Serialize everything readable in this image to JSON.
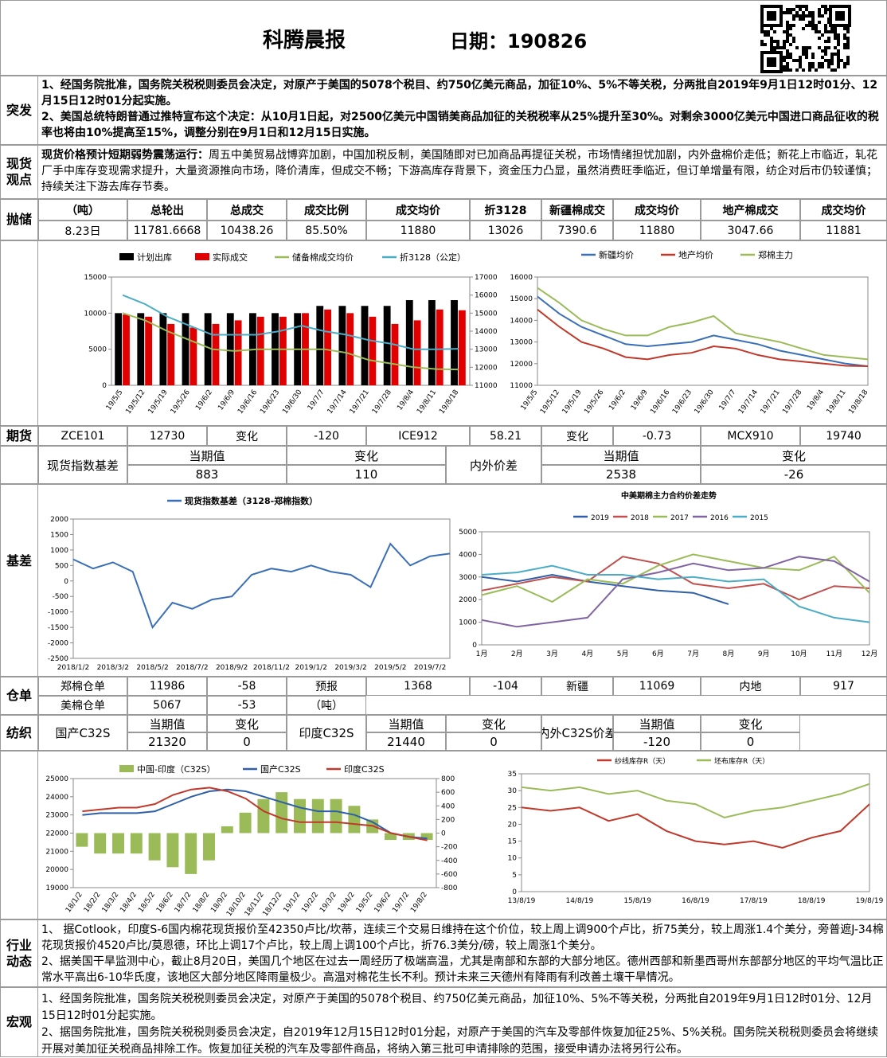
{
  "header": {
    "title": "科腾晨报",
    "date": "日期：190826"
  },
  "sections": {
    "breaking": {
      "label": "突发",
      "paragraphs": [
        "1、经国务院批准，国务院关税税则委员会决定，对原产于美国的5078个税目、约750亿美元商品，加征10%、5%不等关税，分两批自2019年9月1日12时01分、12月15日12时01分起实施。",
        "2、美国总统特朗普通过推特宣布这个决定：从10月1日起，对2500亿美元中国销美商品加征的关税税率从25%提升至30%。对剩余3000亿美元中国进口商品征收的税率也将由10%提高至15%，调整分别在9月1日和12月15日实施。"
      ]
    },
    "spot_view": {
      "label": "现货观点",
      "lead": "现货价格预计短期弱势震荡运行：",
      "text": "周五中美贸易战博弈加剧，中国加税反制，美国随即对已加商品再提征关税，市场情绪担忧加剧，内外盘棉价走低；新花上市临近，轧花厂手中库存变现需求提升，大量资源推向市场，降价清库，但成交不畅；下游高库存背景下，资金压力凸显，虽然消费旺季临近，但订单增量有限，纺企对后市仍较谨慎；持续关注下游去库存节奏。"
    },
    "reserve": {
      "label": "抛储",
      "header": [
        "（吨）",
        "总轮出",
        "总成交",
        "成交比例",
        "成交均价",
        "折3128",
        "新疆棉成交",
        "成交均价",
        "地产棉成交",
        "成交均价"
      ],
      "row": [
        "8.23日",
        "11781.6668",
        "10438.26",
        "85.50%",
        "11880",
        "13026",
        "7390.6",
        "11880",
        "3047.66",
        "11881"
      ]
    },
    "futures": {
      "label": "期货",
      "cells": [
        "ZCE101",
        "12730",
        "变化",
        "-120",
        "ICE912",
        "58.21",
        "变化",
        "-0.73",
        "MCX910",
        "19740"
      ]
    },
    "spot_basis": {
      "cells": [
        "现货指数基差",
        "当期值",
        "883",
        "变化",
        "110",
        "内外价差",
        "当期值",
        "2538",
        "变化",
        "-26"
      ]
    },
    "basis": {
      "label": "基差"
    },
    "warehouse": {
      "label": "仓单",
      "rows": [
        [
          "郑棉仓单",
          "11986",
          "-58",
          "预报",
          "1368",
          "-104",
          "新疆",
          "11069",
          "内地",
          "917"
        ],
        [
          "美棉仓单",
          "5067",
          "-53",
          "（吨）"
        ]
      ]
    },
    "textile": {
      "label": "纺织",
      "cells": [
        "国产C32S",
        "当期值",
        "21320",
        "变化",
        "0",
        "印度C32S",
        "当期值",
        "21440",
        "变化",
        "0",
        "内外C32S价差",
        "当期值",
        "-120",
        "变化",
        "0"
      ]
    },
    "industry": {
      "label": "行业动态",
      "paragraphs": [
        "1、 据Cotlook，印度S-6国内棉花现货报价至42350卢比/坎蒂，连续三个交易日维持在这个价位，较上周上调900个卢比，折75美分，较上周涨1.4个美分，旁普遮J-34棉花现货报价4520卢比/莫恩德，环比上调17个卢比，较上周上调100个卢比，折76.3美分/磅，较上周涨1个美分。",
        "2、据美国干旱监测中心，截止8月20日，美国几个地区在过去一周经历了极端高温，尤其是南部和东部的大部分地区。德州西部和新墨西哥州东部部分地区的平均气温比正常水平高出6-10华氏度，该地区大部分地区降雨量极少。高温对棉花生长不利。预计未来三天德州有降雨有利改善土壤干旱情况。"
      ]
    },
    "macro": {
      "label": "宏观",
      "paragraphs": [
        "1、经国务院批准，国务院关税税则委员会决定，对原产于美国的5078个税目、约750亿美元商品，加征10%、5%不等关税，分两批自2019年9月1日12时01分、12月15日12时01分起实施。",
        "2、据国务院批准，国务院关税税则委员会决定，自2019年12月15日12时01分起，对原产于美国的汽车及零部件恢复加征25%、5%关税。国务院关税税则委员会将继续开展对美加征关税商品排除工作。恢复加征关税的汽车及零部件商品，将纳入第三批可申请排除的范围，接受申请办法将另行公布。"
      ]
    }
  },
  "chart_data": [
    {
      "type": "combo",
      "categories": [
        "19/5/5",
        "19/5/12",
        "19/5/19",
        "19/5/26",
        "19/6/2",
        "19/6/9",
        "19/6/16",
        "19/6/23",
        "19/6/30",
        "19/7/7",
        "19/7/14",
        "19/7/21",
        "19/7/28",
        "19/8/4",
        "19/8/11",
        "19/8/18"
      ],
      "series": [
        {
          "name": "计划出库",
          "type": "bar",
          "color": "#000000",
          "values": [
            10000,
            10000,
            10000,
            10000,
            10000,
            10000,
            10000,
            10000,
            10000,
            11000,
            11000,
            11000,
            11000,
            11800,
            11800,
            11800
          ]
        },
        {
          "name": "实际成交",
          "type": "bar",
          "color": "#e00000",
          "values": [
            9800,
            9500,
            8500,
            8000,
            8500,
            9000,
            9500,
            9500,
            10000,
            10500,
            10000,
            9500,
            8500,
            9000,
            10500,
            10400
          ]
        },
        {
          "name": "储备棉成交均价",
          "type": "line",
          "axis": "y2",
          "color": "#9bbb59",
          "values": [
            15000,
            14600,
            14000,
            13500,
            13000,
            12900,
            13000,
            13000,
            13000,
            13000,
            12800,
            12400,
            12200,
            12000,
            11900,
            11880
          ]
        },
        {
          "name": "折3128（公定）",
          "type": "line",
          "axis": "y2",
          "color": "#4bacc6",
          "values": [
            16000,
            15500,
            14800,
            14300,
            13800,
            13800,
            13800,
            14000,
            14300,
            14000,
            13800,
            13500,
            13300,
            13000,
            13000,
            13026
          ]
        }
      ],
      "ylim": [
        0,
        15000
      ],
      "yticks": [
        0,
        5000,
        10000,
        15000
      ],
      "y2lim": [
        11000,
        17000
      ],
      "y2ticks": [
        11000,
        12000,
        13000,
        14000,
        15000,
        16000,
        17000
      ]
    },
    {
      "type": "line",
      "categories": [
        "19/5/5",
        "19/5/12",
        "19/5/19",
        "19/5/26",
        "19/6/2",
        "19/6/9",
        "19/6/16",
        "19/6/23",
        "19/6/30",
        "19/7/7",
        "19/7/14",
        "19/7/21",
        "19/7/28",
        "19/8/4",
        "19/8/11",
        "19/8/18"
      ],
      "series": [
        {
          "name": "新疆均价",
          "color": "#3a6fb7",
          "values": [
            15100,
            14300,
            13700,
            13300,
            12900,
            12800,
            12900,
            13000,
            13300,
            13100,
            12900,
            12600,
            12400,
            12200,
            12000,
            11880
          ]
        },
        {
          "name": "地产均价",
          "color": "#c0392b",
          "values": [
            14500,
            13700,
            13000,
            12700,
            12300,
            12200,
            12400,
            12500,
            12800,
            12700,
            12400,
            12200,
            12100,
            12000,
            11900,
            11881
          ]
        },
        {
          "name": "郑棉主力",
          "color": "#9bbb59",
          "values": [
            15500,
            14800,
            14000,
            13600,
            13300,
            13300,
            13700,
            13900,
            14200,
            13400,
            13200,
            13000,
            12700,
            12400,
            12300,
            12200
          ]
        }
      ],
      "ylim": [
        11000,
        16000
      ],
      "yticks": [
        11000,
        12000,
        13000,
        14000,
        15000,
        16000
      ]
    },
    {
      "type": "line",
      "categories": [
        "2018/1/2",
        null,
        "2018/3/2",
        null,
        "2018/5/2",
        null,
        "2018/7/2",
        null,
        "2018/9/2",
        null,
        "2018/11/2",
        null,
        "2019/1/2",
        null,
        "2019/3/2",
        null,
        "2019/5/2",
        null,
        "2019/7/2",
        null
      ],
      "series": [
        {
          "name": "现货指数基差（3128-郑棉指数）",
          "color": "#3a6fb7",
          "values": [
            700,
            400,
            600,
            300,
            -1500,
            -700,
            -900,
            -600,
            -500,
            200,
            400,
            300,
            500,
            300,
            200,
            -200,
            1200,
            500,
            800,
            883
          ]
        }
      ],
      "ylim": [
        -2500,
        2000
      ],
      "yticks": [
        -2500,
        -2000,
        -1500,
        -1000,
        -500,
        0,
        500,
        1000,
        1500,
        2000
      ]
    },
    {
      "type": "line",
      "title": "中美期棉主力合约价差走势",
      "categories": [
        "1月",
        "2月",
        "3月",
        "4月",
        "5月",
        "6月",
        "7月",
        "8月",
        "9月",
        "10月",
        "11月",
        "12月"
      ],
      "series": [
        {
          "name": "2019",
          "color": "#2e5fa8",
          "values": [
            3000,
            2800,
            3100,
            2800,
            2600,
            2400,
            2300,
            1800,
            null,
            null,
            null,
            null
          ]
        },
        {
          "name": "2018",
          "color": "#c0504d",
          "values": [
            2400,
            2700,
            3000,
            2800,
            3900,
            3600,
            2700,
            2500,
            2700,
            2000,
            2600,
            2500
          ]
        },
        {
          "name": "2017",
          "color": "#9bbb59",
          "values": [
            2200,
            2600,
            1900,
            2900,
            2700,
            3500,
            4000,
            3700,
            3400,
            3300,
            3900,
            2300
          ]
        },
        {
          "name": "2016",
          "color": "#8064a2",
          "values": [
            1100,
            800,
            1000,
            1200,
            2900,
            3200,
            3600,
            3300,
            3400,
            3900,
            3700,
            2800
          ]
        },
        {
          "name": "2015",
          "color": "#4bacc6",
          "values": [
            3100,
            3200,
            3500,
            3100,
            3100,
            2900,
            3000,
            2800,
            2900,
            1700,
            1200,
            1000
          ]
        }
      ],
      "ylim": [
        0,
        5000
      ],
      "yticks": [
        0,
        1000,
        2000,
        3000,
        4000,
        5000
      ]
    },
    {
      "type": "combo",
      "categories": [
        "18/1/2",
        "18/2/2",
        "18/3/2",
        "18/4/2",
        "18/5/2",
        "18/6/2",
        "18/7/2",
        "18/8/2",
        "18/9/2",
        "18/10/2",
        "18/11/2",
        "18/12/2",
        "19/1/2",
        "19/2/2",
        "19/3/2",
        "19/4/2",
        "19/5/2",
        "19/6/2",
        "19/7/2",
        "19/8/2"
      ],
      "series": [
        {
          "name": "中国-印度（C32S）",
          "type": "bar",
          "axis": "y2",
          "color": "#9bbb59",
          "values": [
            -200,
            -300,
            -300,
            -300,
            -400,
            -500,
            -600,
            -400,
            100,
            300,
            500,
            600,
            500,
            500,
            500,
            400,
            200,
            -100,
            -100,
            -100
          ]
        },
        {
          "name": "国产C32S",
          "type": "line",
          "color": "#2e5fa8",
          "values": [
            23000,
            23100,
            23100,
            23100,
            23200,
            23600,
            24000,
            24300,
            24400,
            24300,
            24000,
            23700,
            23400,
            23200,
            23200,
            23000,
            22600,
            22000,
            21800,
            21700
          ]
        },
        {
          "name": "印度C32S",
          "type": "line",
          "color": "#c0392b",
          "values": [
            23200,
            23300,
            23400,
            23400,
            23600,
            24100,
            24400,
            24500,
            24300,
            23900,
            23200,
            22800,
            22600,
            22600,
            22600,
            22500,
            22400,
            22000,
            21800,
            21600
          ]
        }
      ],
      "ylim": [
        19000,
        25000
      ],
      "yticks": [
        19000,
        20000,
        21000,
        22000,
        23000,
        24000,
        25000
      ],
      "y2lim": [
        -800,
        800
      ],
      "y2ticks": [
        -800,
        -600,
        -400,
        -200,
        0,
        200,
        400,
        600,
        800
      ]
    },
    {
      "type": "line",
      "categories": [
        "13/8/19",
        null,
        "14/8/19",
        null,
        "15/8/19",
        null,
        "16/8/19",
        null,
        "17/8/19",
        null,
        "18/8/19",
        null,
        "19/8/19"
      ],
      "series": [
        {
          "name": "纱线库存R（天）",
          "color": "#c0392b",
          "values": [
            25,
            24,
            25,
            21,
            23,
            18,
            15,
            14,
            15,
            13,
            16,
            18,
            26
          ]
        },
        {
          "name": "坯布库存R（天）",
          "color": "#9bbb59",
          "values": [
            31,
            30,
            31,
            29,
            30,
            27,
            26,
            22,
            24,
            25,
            27,
            29,
            32
          ]
        }
      ],
      "ylim": [
        0,
        35
      ],
      "yticks": [
        0,
        5,
        10,
        15,
        20,
        25,
        30,
        35
      ]
    }
  ]
}
